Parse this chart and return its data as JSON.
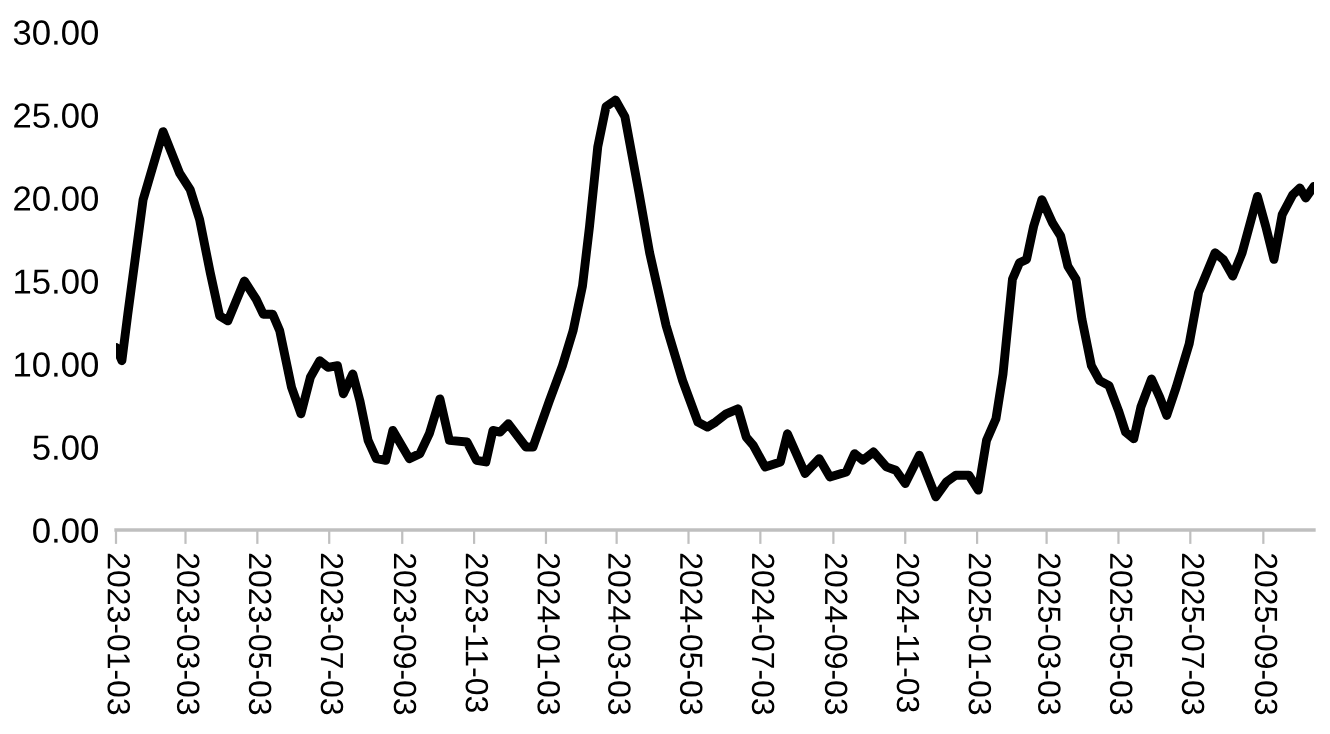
{
  "chart_data": {
    "type": "line",
    "x": [
      "2023-01-03",
      "2023-01-08",
      "2023-01-13",
      "2023-01-26",
      "2023-02-12",
      "2023-02-26",
      "2023-03-07",
      "2023-03-15",
      "2023-03-24",
      "2023-04-01",
      "2023-04-08",
      "2023-04-22",
      "2023-05-02",
      "2023-05-08",
      "2023-05-16",
      "2023-05-22",
      "2023-06-01",
      "2023-06-09",
      "2023-06-17",
      "2023-06-25",
      "2023-07-02",
      "2023-07-10",
      "2023-07-15",
      "2023-07-23",
      "2023-07-29",
      "2023-08-05",
      "2023-08-12",
      "2023-08-20",
      "2023-08-26",
      "2023-09-09",
      "2023-09-18",
      "2023-09-26",
      "2023-10-05",
      "2023-10-13",
      "2023-10-28",
      "2023-11-05",
      "2023-11-13",
      "2023-11-19",
      "2023-11-25",
      "2023-12-02",
      "2023-12-17",
      "2023-12-23",
      "2024-01-06",
      "2024-01-17",
      "2024-01-26",
      "2024-02-03",
      "2024-02-09",
      "2024-02-16",
      "2024-02-23",
      "2024-03-02",
      "2024-03-10",
      "2024-03-22",
      "2024-03-31",
      "2024-04-14",
      "2024-04-28",
      "2024-05-11",
      "2024-05-19",
      "2024-05-26",
      "2024-06-04",
      "2024-06-14",
      "2024-06-21",
      "2024-06-27",
      "2024-07-07",
      "2024-07-20",
      "2024-07-26",
      "2024-08-10",
      "2024-08-22",
      "2024-08-31",
      "2024-09-14",
      "2024-09-21",
      "2024-09-28",
      "2024-10-07",
      "2024-10-18",
      "2024-10-26",
      "2024-11-03",
      "2024-11-15",
      "2024-11-29",
      "2024-12-08",
      "2024-12-16",
      "2024-12-27",
      "2025-01-04",
      "2025-01-11",
      "2025-01-19",
      "2025-01-25",
      "2025-02-02",
      "2025-02-08",
      "2025-02-14",
      "2025-02-20",
      "2025-02-27",
      "2025-03-08",
      "2025-03-15",
      "2025-03-21",
      "2025-03-28",
      "2025-04-02",
      "2025-04-10",
      "2025-04-17",
      "2025-04-25",
      "2025-05-03",
      "2025-05-09",
      "2025-05-16",
      "2025-05-22",
      "2025-05-31",
      "2025-06-07",
      "2025-06-13",
      "2025-06-21",
      "2025-07-02",
      "2025-07-10",
      "2025-07-24",
      "2025-07-31",
      "2025-08-08",
      "2025-08-16",
      "2025-08-29",
      "2025-09-05",
      "2025-09-12",
      "2025-09-19",
      "2025-09-28",
      "2025-10-04",
      "2025-10-09",
      "2025-10-16"
    ],
    "series": [
      {
        "color": "#000000",
        "values": [
          11.0,
          10.2,
          13.0,
          19.9,
          24.0,
          21.5,
          20.5,
          18.7,
          15.5,
          12.9,
          12.6,
          15.0,
          13.9,
          13.0,
          13.0,
          12.0,
          8.6,
          7.0,
          9.2,
          10.2,
          9.8,
          9.9,
          8.2,
          9.4,
          7.8,
          5.4,
          4.3,
          4.2,
          6.0,
          4.3,
          4.6,
          5.8,
          7.9,
          5.4,
          5.3,
          4.2,
          4.1,
          6.0,
          5.9,
          6.4,
          5.0,
          5.0,
          7.8,
          9.9,
          12.0,
          14.7,
          18.3,
          23.1,
          25.5,
          25.9,
          24.9,
          20.3,
          16.7,
          12.3,
          9.0,
          6.5,
          6.2,
          6.5,
          7.0,
          7.3,
          5.6,
          5.1,
          3.8,
          4.1,
          5.8,
          3.4,
          4.3,
          3.2,
          3.5,
          4.6,
          4.2,
          4.7,
          3.8,
          3.6,
          2.8,
          4.5,
          2.0,
          2.9,
          3.3,
          3.3,
          2.4,
          5.4,
          6.7,
          9.4,
          15.1,
          16.1,
          16.3,
          18.3,
          19.9,
          18.5,
          17.7,
          15.9,
          15.1,
          12.7,
          9.9,
          9.0,
          8.7,
          7.2,
          5.9,
          5.5,
          7.4,
          9.1,
          8.0,
          6.9,
          8.6,
          11.2,
          14.3,
          16.7,
          16.3,
          15.3,
          16.7,
          20.1,
          18.3,
          16.3,
          19.0,
          20.2,
          20.6,
          20.0,
          20.7
        ]
      }
    ],
    "xlim": [
      "2023-01-03",
      "2025-10-16"
    ],
    "xticks": [
      "2023-01-03",
      "2023-03-03",
      "2023-05-03",
      "2023-07-03",
      "2023-09-03",
      "2023-11-03",
      "2024-01-03",
      "2024-03-03",
      "2024-05-03",
      "2024-07-03",
      "2024-09-03",
      "2024-11-03",
      "2025-01-03",
      "2025-03-03",
      "2025-05-03",
      "2025-07-03",
      "2025-09-03"
    ],
    "ylim": [
      0,
      30
    ],
    "yticks": [
      {
        "value": 0,
        "label": "0.00"
      },
      {
        "value": 5,
        "label": "5.00"
      },
      {
        "value": 10,
        "label": "10.00"
      },
      {
        "value": 15,
        "label": "15.00"
      },
      {
        "value": 20,
        "label": "20.00"
      },
      {
        "value": 25,
        "label": "25.00"
      },
      {
        "value": 30,
        "label": "30.00"
      }
    ],
    "grid": false,
    "legend": false,
    "marker": "none",
    "line_style": "solid"
  }
}
